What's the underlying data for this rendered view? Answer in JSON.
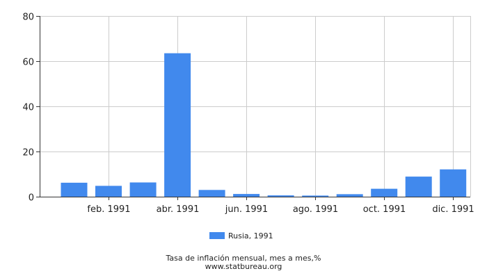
{
  "chart_data": {
    "type": "bar",
    "categories": [
      "ene. 1991",
      "feb. 1991",
      "mar. 1991",
      "abr. 1991",
      "may. 1991",
      "jun. 1991",
      "jul. 1991",
      "ago. 1991",
      "sep. 1991",
      "oct. 1991",
      "nov. 1991",
      "dic. 1991"
    ],
    "x_tick_labels": [
      "feb. 1991",
      "abr. 1991",
      "jun. 1991",
      "ago. 1991",
      "oct. 1991",
      "dic. 1991"
    ],
    "series": [
      {
        "name": "Rusia, 1991",
        "color": "#4189ed",
        "values": [
          6.2,
          4.8,
          6.3,
          63.5,
          3.0,
          1.2,
          0.6,
          0.5,
          1.1,
          3.5,
          8.9,
          12.1
        ]
      }
    ],
    "ylim": [
      0,
      80
    ],
    "y_ticks": [
      0,
      20,
      40,
      60,
      80
    ],
    "grid": true,
    "legend_position": "bottom",
    "xlabel": "",
    "ylabel": ""
  },
  "caption": {
    "title": "Tasa de inflación mensual, mes a mes,%",
    "source": "www.statbureau.org"
  }
}
